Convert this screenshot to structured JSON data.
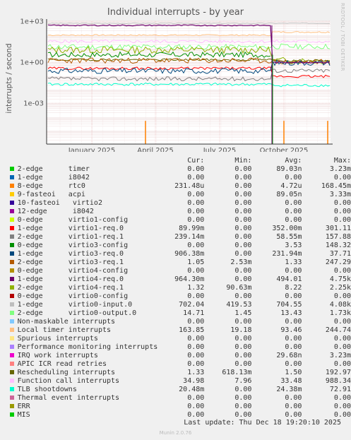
{
  "chart_data": {
    "type": "line",
    "title": "Individual interrupts - by year",
    "ylabel": "interrupts / second",
    "yscale": "log",
    "ylim": [
      1e-06,
      1000
    ],
    "yticks": [
      {
        "value": 1000,
        "label": "1e+03"
      },
      {
        "value": 1,
        "label": "1e+00"
      },
      {
        "value": 0.001,
        "label": "1e-03"
      }
    ],
    "xticks": [
      "January 2025",
      "April 2025",
      "July 2025",
      "October 2025"
    ],
    "grid": true,
    "columns": [
      "Cur:",
      "Min:",
      "Avg:",
      "Max:"
    ],
    "series": [
      {
        "name": "2-edge      timer",
        "color": "#00cc00",
        "cur": "0.00",
        "min": "0.00",
        "avg": "89.03n",
        "max": "3.23m"
      },
      {
        "name": "1-edge      i8042",
        "color": "#0066b3",
        "cur": "0.00",
        "min": "0.00",
        "avg": "0.00",
        "max": "0.00"
      },
      {
        "name": "8-edge      rtc0",
        "color": "#ff8000",
        "cur": "231.48u",
        "min": "0.00",
        "avg": "4.72u",
        "max": "168.45m"
      },
      {
        "name": "9-fasteoi   acpi",
        "color": "#ffcc00",
        "cur": "0.00",
        "min": "0.00",
        "avg": "89.05n",
        "max": "3.33m"
      },
      {
        "name": "10-fasteoi   virtio2",
        "color": "#330099",
        "cur": "0.00",
        "min": "0.00",
        "avg": "0.00",
        "max": "0.00"
      },
      {
        "name": "12-edge      i8042",
        "color": "#990099",
        "cur": "0.00",
        "min": "0.00",
        "avg": "0.00",
        "max": "0.00"
      },
      {
        "name": "0-edge      virtio1-config",
        "color": "#ccff00",
        "cur": "0.00",
        "min": "0.00",
        "avg": "0.00",
        "max": "0.00"
      },
      {
        "name": "1-edge      virtio1-req.0",
        "color": "#ff0000",
        "cur": "89.99m",
        "min": "0.00",
        "avg": "352.00m",
        "max": "301.11"
      },
      {
        "name": "2-edge      virtio1-req.1",
        "color": "#808080",
        "cur": "239.14m",
        "min": "0.00",
        "avg": "58.55m",
        "max": "157.88"
      },
      {
        "name": "0-edge      virtio3-config",
        "color": "#008f00",
        "cur": "0.00",
        "min": "0.00",
        "avg": "3.53",
        "max": "148.32"
      },
      {
        "name": "1-edge      virtio3-req.0",
        "color": "#00487d",
        "cur": "906.38m",
        "min": "0.00",
        "avg": "231.94m",
        "max": "37.71"
      },
      {
        "name": "2-edge      virtio3-req.1",
        "color": "#b35a00",
        "cur": "1.05",
        "min": "2.53m",
        "avg": "1.33",
        "max": "247.29"
      },
      {
        "name": "0-edge      virtio4-config",
        "color": "#b38f00",
        "cur": "0.00",
        "min": "0.00",
        "avg": "0.00",
        "max": "0.00"
      },
      {
        "name": "1-edge      virtio4-req.0",
        "color": "#6b006b",
        "cur": "964.30m",
        "min": "0.00",
        "avg": "494.01",
        "max": "4.75k"
      },
      {
        "name": "2-edge      virtio4-req.1",
        "color": "#8fb300",
        "cur": "1.32",
        "min": "90.63m",
        "avg": "8.22",
        "max": "2.25k"
      },
      {
        "name": "0-edge      virtio0-config",
        "color": "#b30000",
        "cur": "0.00",
        "min": "0.00",
        "avg": "0.00",
        "max": "0.00"
      },
      {
        "name": "1-edge      virtio0-input.0",
        "color": "#bebebe",
        "cur": "702.04",
        "min": "419.53",
        "avg": "704.55",
        "max": "4.08k"
      },
      {
        "name": "2-edge      virtio0-output.0",
        "color": "#80ff80",
        "cur": "14.71",
        "min": "1.45",
        "avg": "13.43",
        "max": "1.73k"
      },
      {
        "name": "Non-maskable interrupts",
        "color": "#80c9ff",
        "cur": "0.00",
        "min": "0.00",
        "avg": "0.00",
        "max": "0.00"
      },
      {
        "name": "Local timer interrupts",
        "color": "#ffc080",
        "cur": "163.85",
        "min": "19.18",
        "avg": "93.46",
        "max": "244.74"
      },
      {
        "name": "Spurious interrupts",
        "color": "#ffe680",
        "cur": "0.00",
        "min": "0.00",
        "avg": "0.00",
        "max": "0.00"
      },
      {
        "name": "Performance monitoring interrupts",
        "color": "#aa80ff",
        "cur": "0.00",
        "min": "0.00",
        "avg": "0.00",
        "max": "0.00"
      },
      {
        "name": "IRQ work interrupts",
        "color": "#ee00cc",
        "cur": "0.00",
        "min": "0.00",
        "avg": "29.68n",
        "max": "3.23m"
      },
      {
        "name": "APIC ICR read retries",
        "color": "#ff8080",
        "cur": "0.00",
        "min": "0.00",
        "avg": "0.00",
        "max": "0.00"
      },
      {
        "name": "Rescheduling interrupts",
        "color": "#666600",
        "cur": "1.33",
        "min": "618.13m",
        "avg": "1.50",
        "max": "192.97"
      },
      {
        "name": "Function call interrupts",
        "color": "#ffbfff",
        "cur": "34.98",
        "min": "7.96",
        "avg": "33.48",
        "max": "988.34"
      },
      {
        "name": "TLB shootdowns",
        "color": "#00ffcc",
        "cur": "20.48m",
        "min": "0.00",
        "avg": "24.38m",
        "max": "72.91"
      },
      {
        "name": "Thermal event interrupts",
        "color": "#cc6699",
        "cur": "0.00",
        "min": "0.00",
        "avg": "0.00",
        "max": "0.00"
      },
      {
        "name": "ERR",
        "color": "#999900",
        "cur": "0.00",
        "min": "0.00",
        "avg": "0.00",
        "max": "0.00"
      },
      {
        "name": "MIS",
        "color": "#00cc00",
        "cur": "0.00",
        "min": "0.00",
        "avg": "0.00",
        "max": "0.00"
      }
    ]
  },
  "watermark": "RRDTOOL / TOBI OETIKER",
  "last_update": "Last update: Thu Dec 18 19:20:10 2025",
  "generator": "Munin 2.0.76"
}
